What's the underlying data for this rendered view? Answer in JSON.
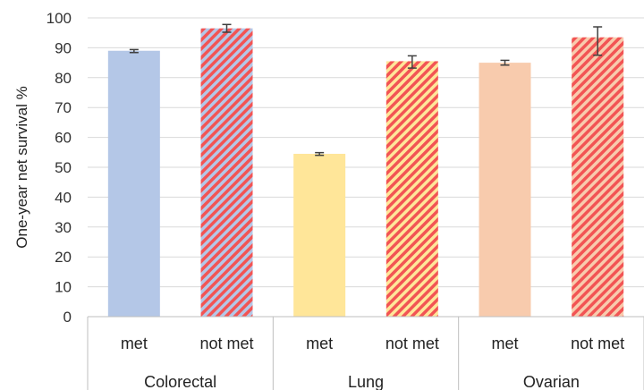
{
  "chart_data": {
    "type": "bar",
    "ylabel": "One-year net survival %",
    "ylim": [
      0,
      100
    ],
    "yticks": [
      0,
      10,
      20,
      30,
      40,
      50,
      60,
      70,
      80,
      90,
      100
    ],
    "grid": true,
    "groups": [
      "Colorectal",
      "Lung",
      "Ovarian"
    ],
    "categories": [
      "met",
      "not met",
      "met",
      "not met",
      "met",
      "not met"
    ],
    "values": [
      89,
      96.5,
      54.5,
      85.5,
      85,
      93.5
    ],
    "error_low": [
      88.4,
      95.2,
      54.0,
      83.2,
      84.2,
      87.5
    ],
    "error_high": [
      89.4,
      97.8,
      54.9,
      87.3,
      85.8,
      97.0
    ],
    "colors": [
      "#b4c7e7",
      "#b4c7e7",
      "#ffe699",
      "#ffe699",
      "#f8cbad",
      "#f8cbad"
    ],
    "hatched": [
      false,
      true,
      false,
      true,
      false,
      true
    ],
    "hatch_color": "#f25454"
  }
}
